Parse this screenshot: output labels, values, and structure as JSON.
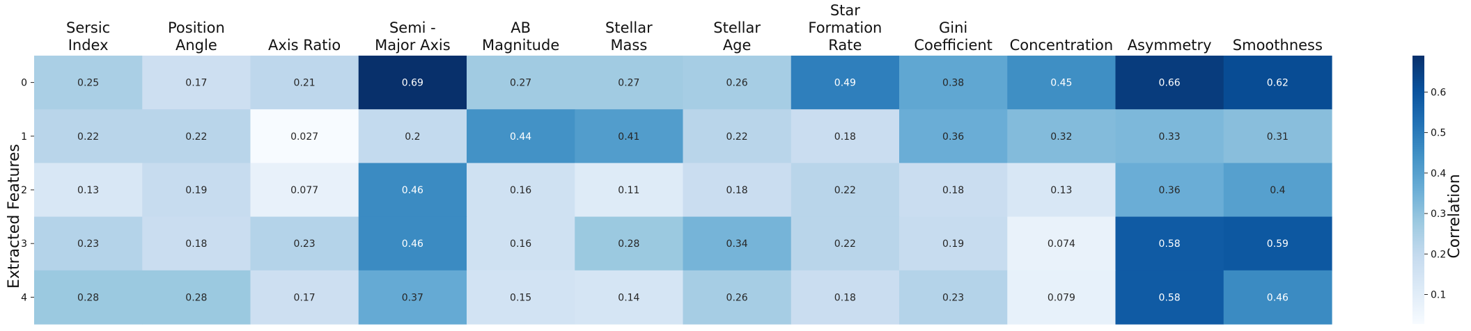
{
  "chart_data": {
    "type": "heatmap",
    "ylabel": "Extracted Features",
    "colorbar_label": "Correlation",
    "colormap": "Blues",
    "colorbar_range": [
      0.027,
      0.69
    ],
    "colorbar_ticks": [
      "0.1",
      "0.2",
      "0.3",
      "0.4",
      "0.5",
      "0.6"
    ],
    "colorbar_tick_values": [
      0.1,
      0.2,
      0.3,
      0.4,
      0.5,
      0.6
    ],
    "columns": [
      [
        "Sersic",
        "Index"
      ],
      [
        "Position",
        "Angle"
      ],
      [
        "Axis Ratio"
      ],
      [
        "Semi -",
        "Major Axis"
      ],
      [
        "AB",
        "Magnitude"
      ],
      [
        "Stellar",
        "Mass"
      ],
      [
        "Stellar",
        "Age"
      ],
      [
        "Star",
        "Formation",
        "Rate"
      ],
      [
        "Gini",
        "Coefficient"
      ],
      [
        "Concentration"
      ],
      [
        "Asymmetry"
      ],
      [
        "Smoothness"
      ]
    ],
    "rows": [
      "0",
      "1",
      "2",
      "3",
      "4"
    ],
    "values": [
      [
        0.25,
        0.17,
        0.21,
        0.69,
        0.27,
        0.27,
        0.26,
        0.49,
        0.38,
        0.45,
        0.66,
        0.62
      ],
      [
        0.22,
        0.22,
        0.027,
        0.2,
        0.44,
        0.41,
        0.22,
        0.18,
        0.36,
        0.32,
        0.33,
        0.31
      ],
      [
        0.13,
        0.19,
        0.077,
        0.46,
        0.16,
        0.11,
        0.18,
        0.22,
        0.18,
        0.13,
        0.36,
        0.4
      ],
      [
        0.23,
        0.18,
        0.23,
        0.46,
        0.16,
        0.28,
        0.34,
        0.22,
        0.19,
        0.074,
        0.58,
        0.59
      ],
      [
        0.28,
        0.28,
        0.17,
        0.37,
        0.15,
        0.14,
        0.26,
        0.18,
        0.23,
        0.079,
        0.58,
        0.46
      ]
    ],
    "value_labels": [
      [
        "0.25",
        "0.17",
        "0.21",
        "0.69",
        "0.27",
        "0.27",
        "0.26",
        "0.49",
        "0.38",
        "0.45",
        "0.66",
        "0.62"
      ],
      [
        "0.22",
        "0.22",
        "0.027",
        "0.2",
        "0.44",
        "0.41",
        "0.22",
        "0.18",
        "0.36",
        "0.32",
        "0.33",
        "0.31"
      ],
      [
        "0.13",
        "0.19",
        "0.077",
        "0.46",
        "0.16",
        "0.11",
        "0.18",
        "0.22",
        "0.18",
        "0.13",
        "0.36",
        "0.4"
      ],
      [
        "0.23",
        "0.18",
        "0.23",
        "0.46",
        "0.16",
        "0.28",
        "0.34",
        "0.22",
        "0.19",
        "0.074",
        "0.58",
        "0.59"
      ],
      [
        "0.28",
        "0.28",
        "0.17",
        "0.37",
        "0.15",
        "0.14",
        "0.26",
        "0.18",
        "0.23",
        "0.079",
        "0.58",
        "0.46"
      ]
    ]
  }
}
